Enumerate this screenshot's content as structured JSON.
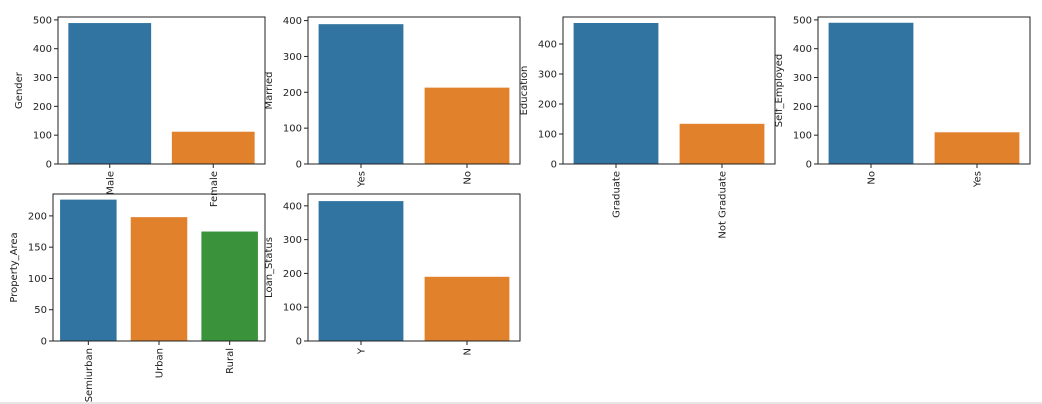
{
  "chart_data": [
    {
      "type": "bar",
      "ylabel": "Gender",
      "categories": [
        "Male",
        "Female"
      ],
      "values": [
        489,
        112
      ],
      "colors": [
        "#3274a1",
        "#e1812c"
      ],
      "ylim": [
        0,
        510
      ],
      "yticks": [
        0,
        100,
        200,
        300,
        400,
        500
      ],
      "grid": false
    },
    {
      "type": "bar",
      "ylabel": "Married",
      "categories": [
        "Yes",
        "No"
      ],
      "values": [
        390,
        213
      ],
      "colors": [
        "#3274a1",
        "#e1812c"
      ],
      "ylim": [
        0,
        410
      ],
      "yticks": [
        0,
        100,
        200,
        300,
        400
      ],
      "grid": false
    },
    {
      "type": "bar",
      "ylabel": "Education",
      "categories": [
        "Graduate",
        "Not Graduate"
      ],
      "values": [
        470,
        134
      ],
      "colors": [
        "#3274a1",
        "#e1812c"
      ],
      "ylim": [
        0,
        490
      ],
      "yticks": [
        0,
        100,
        200,
        300,
        400
      ],
      "grid": false
    },
    {
      "type": "bar",
      "ylabel": "Self_Employed",
      "categories": [
        "No",
        "Yes"
      ],
      "values": [
        490,
        110
      ],
      "colors": [
        "#3274a1",
        "#e1812c"
      ],
      "ylim": [
        0,
        510
      ],
      "yticks": [
        0,
        100,
        200,
        300,
        400,
        500
      ],
      "grid": false
    },
    {
      "type": "bar",
      "ylabel": "Property_Area",
      "categories": [
        "Semiurban",
        "Urban",
        "Rural"
      ],
      "values": [
        226,
        198,
        175
      ],
      "colors": [
        "#3274a1",
        "#e1812c",
        "#3a923a"
      ],
      "ylim": [
        0,
        235
      ],
      "yticks": [
        0,
        50,
        100,
        150,
        200
      ],
      "grid": false
    },
    {
      "type": "bar",
      "ylabel": "Loan_Status",
      "categories": [
        "Y",
        "N"
      ],
      "values": [
        414,
        190
      ],
      "colors": [
        "#3274a1",
        "#e1812c"
      ],
      "ylim": [
        0,
        435
      ],
      "yticks": [
        0,
        100,
        200,
        300,
        400
      ],
      "grid": false
    }
  ]
}
